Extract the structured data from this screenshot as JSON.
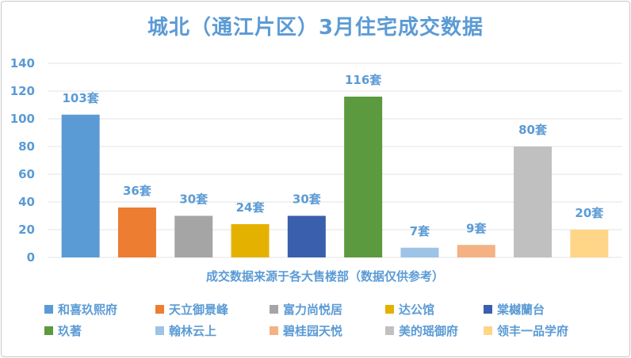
{
  "chart_data": {
    "type": "bar",
    "title": "城北（通江片区）3月住宅成交数据",
    "xlabel": "成交数据来源于各大售楼部（数据仅供参考）",
    "ylabel": "",
    "ylim": [
      0,
      140
    ],
    "yticks": [
      0,
      20,
      40,
      60,
      80,
      100,
      120,
      140
    ],
    "grid": true,
    "legend_position": "bottom",
    "categories": [
      "和喜玖熙府",
      "天立御景峰",
      "富力尚悦居",
      "达公馆",
      "棠樾蘭台",
      "玖著",
      "翰林云上",
      "碧桂园天悦",
      "美的瑶御府",
      "领丰一品学府"
    ],
    "values": [
      103,
      36,
      30,
      24,
      30,
      116,
      7,
      9,
      80,
      20
    ],
    "data_labels": [
      "103套",
      "36套",
      "30套",
      "24套",
      "30套",
      "116套",
      "7套",
      "9套",
      "80套",
      "20套"
    ],
    "colors": [
      "#5b9bd5",
      "#ed7d31",
      "#a5a5a5",
      "#e5b100",
      "#3a5fac",
      "#5b9a3e",
      "#9dc3e6",
      "#f4b183",
      "#c0c0c0",
      "#ffd588"
    ]
  }
}
